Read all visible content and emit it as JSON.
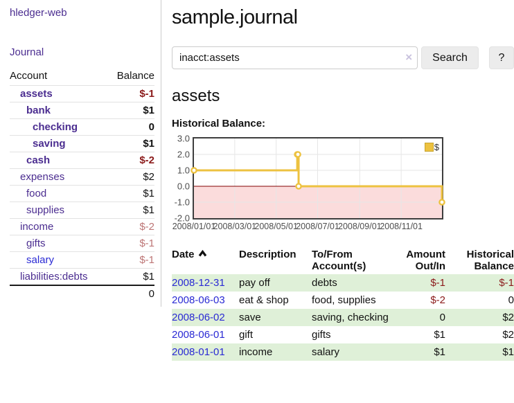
{
  "colors": {
    "purple": "#4b2d90",
    "blue": "#2a2ad4",
    "negative": "#8b1a1a",
    "muted-negative": "#bd7575",
    "row-green": "#dff0d8",
    "gold": "#edc240",
    "pink": "#fbdcdc",
    "zero-line": "#800000",
    "grid": "#e6e6e6"
  },
  "app": {
    "brand": "hledger-web"
  },
  "sidebar": {
    "journal_link": "Journal",
    "accounts_table": {
      "header_account": "Account",
      "header_balance": "Balance",
      "rows": [
        {
          "name": "assets",
          "indent": 1,
          "bold": true,
          "balance": "$-1",
          "balance_style": "negative"
        },
        {
          "name": "bank",
          "indent": 2,
          "bold": true,
          "balance": "$1",
          "balance_style": "normal"
        },
        {
          "name": "checking",
          "indent": 3,
          "bold": true,
          "balance": "0",
          "balance_style": "normal"
        },
        {
          "name": "saving",
          "indent": 3,
          "bold": true,
          "balance": "$1",
          "balance_style": "normal"
        },
        {
          "name": "cash",
          "indent": 2,
          "bold": true,
          "balance": "$-2",
          "balance_style": "negative"
        },
        {
          "name": "expenses",
          "indent": 1,
          "bold": false,
          "balance": "$2",
          "balance_style": "normal"
        },
        {
          "name": "food",
          "indent": 2,
          "bold": false,
          "balance": "$1",
          "balance_style": "normal"
        },
        {
          "name": "supplies",
          "indent": 2,
          "bold": false,
          "balance": "$1",
          "balance_style": "normal"
        },
        {
          "name": "income",
          "indent": 1,
          "bold": false,
          "balance": "$-2",
          "balance_style": "muted-negative"
        },
        {
          "name": "gifts",
          "indent": 2,
          "bold": false,
          "balance": "$-1",
          "balance_style": "muted-negative"
        },
        {
          "name": "salary",
          "indent": 2,
          "bold": false,
          "link_color": "blue",
          "balance": "$-1",
          "balance_style": "muted-negative"
        },
        {
          "name": "liabilities:debts",
          "indent": 1,
          "bold": false,
          "balance": "$1",
          "balance_style": "normal"
        }
      ],
      "total": "0"
    }
  },
  "header": {
    "title": "sample.journal"
  },
  "search": {
    "value": "inacct:assets",
    "clear_icon": "×",
    "button_label": "Search",
    "help_label": "?"
  },
  "account_page": {
    "title": "assets",
    "chart_heading": "Historical Balance:"
  },
  "chart_data": {
    "type": "line",
    "style": "step-after",
    "title": "Historical Balance:",
    "legend": "$",
    "legend_position": "top-right",
    "grid": true,
    "x_range": [
      "2008-01-01",
      "2008-12-31"
    ],
    "ylim": [
      -2,
      3
    ],
    "y_ticks": [
      "3.0",
      "2.0",
      "1.0",
      "0.0",
      "-1.0",
      "-2.0"
    ],
    "x_ticks": [
      "2008/01/01",
      "2008/03/01",
      "2008/05/01",
      "2008/07/01",
      "2008/09/01",
      "2008/11/01"
    ],
    "series": [
      {
        "name": "$",
        "points": [
          {
            "x": "2008-01-01",
            "y": 1
          },
          {
            "x": "2008-06-01",
            "y": 2
          },
          {
            "x": "2008-06-02",
            "y": 2
          },
          {
            "x": "2008-06-03",
            "y": 0
          },
          {
            "x": "2008-12-31",
            "y": -1
          }
        ]
      }
    ]
  },
  "register_table": {
    "headers": {
      "date": "Date",
      "description": "Description",
      "accounts": "To/From Account(s)",
      "amount": "Amount Out/In",
      "balance": "Historical Balance"
    },
    "sort": "ascending",
    "rows": [
      {
        "date": "2008-12-31",
        "description": "pay off",
        "accounts": "debts",
        "amount": "$-1",
        "amount_negative": true,
        "balance": "$-1",
        "balance_negative": true
      },
      {
        "date": "2008-06-03",
        "description": "eat & shop",
        "accounts": "food, supplies",
        "amount": "$-2",
        "amount_negative": true,
        "balance": "0",
        "balance_negative": false
      },
      {
        "date": "2008-06-02",
        "description": "save",
        "accounts": "saving, checking",
        "amount": "0",
        "amount_negative": false,
        "balance": "$2",
        "balance_negative": false
      },
      {
        "date": "2008-06-01",
        "description": "gift",
        "accounts": "gifts",
        "amount": "$1",
        "amount_negative": false,
        "balance": "$2",
        "balance_negative": false
      },
      {
        "date": "2008-01-01",
        "description": "income",
        "accounts": "salary",
        "amount": "$1",
        "amount_negative": false,
        "balance": "$1",
        "balance_negative": false
      }
    ]
  }
}
